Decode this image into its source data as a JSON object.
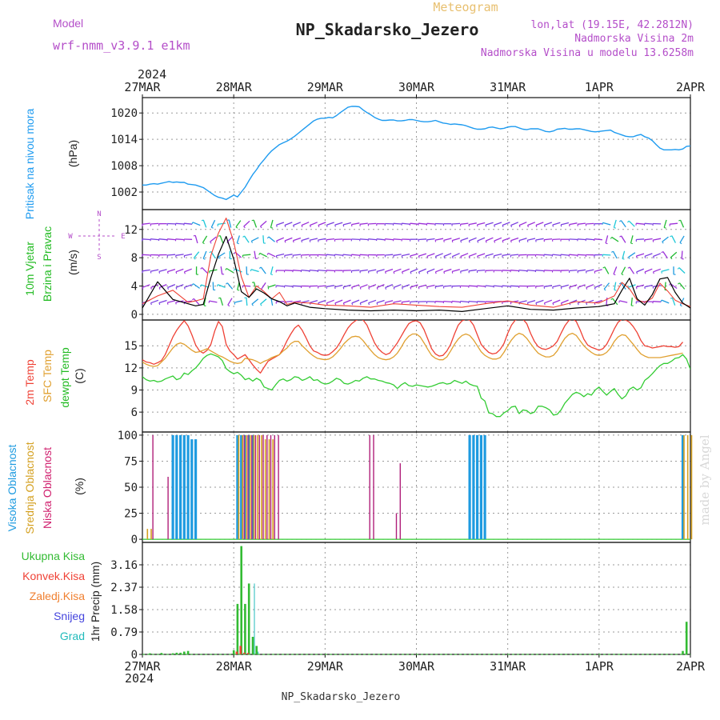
{
  "header": {
    "title": "NP_Skadarsko_Jezero",
    "subtitle": "Meteogram",
    "model_label": "Model",
    "model_value": "wrf-nmm_v3.9.1  e1km",
    "lonlat": "lon,lat (19.15E, 42.2812N)",
    "alt_line": "Nadmorska Visina 2m",
    "alt_model_line": "Nadmorska Visina u modelu 13.6258m",
    "footer_title": "NP_Skadarsko_Jezero",
    "watermark": "made by Angel"
  },
  "time_axis": {
    "year": "2024",
    "labels": [
      "27MAR",
      "28MAR",
      "29MAR",
      "30MAR",
      "31MAR",
      "1APR",
      "2APR"
    ]
  },
  "colors": {
    "pressure": "#1e9bf0",
    "temp2m": "#ef4135",
    "sfc_temp": "#e0a030",
    "dewpoint": "#33cc33",
    "wind_speed": "#000000",
    "gust": "#ef4135",
    "high_cloud": "#1e9be0",
    "mid_cloud": "#d4a020",
    "low_cloud": "#b0207a",
    "total_precip": "#33bb33",
    "conv_precip": "#ef4135",
    "frozen_precip": "#f08030",
    "snow": "#4444dd",
    "hail": "#22bbbb"
  },
  "chart_data": [
    {
      "panel": "pressure",
      "type": "line",
      "ylabel": [
        "Pritisak na nivou mora",
        "(hPa)"
      ],
      "yticks": [
        1002,
        1008,
        1014,
        1020
      ],
      "ylim": [
        998,
        1023.5
      ],
      "grid": true,
      "x": [
        0,
        1,
        2,
        3,
        4,
        5,
        6,
        7,
        8,
        9,
        10,
        11,
        12,
        13,
        14,
        15,
        16,
        17,
        18,
        19,
        20,
        21,
        22,
        23,
        24,
        25,
        26,
        27,
        28,
        29,
        30,
        31,
        32,
        33,
        34,
        35,
        36,
        37,
        38,
        39,
        40,
        41,
        42,
        43,
        44,
        45,
        46,
        47,
        48,
        49,
        50,
        51,
        52,
        53,
        54,
        55,
        56,
        57,
        58,
        59,
        60,
        61,
        62,
        63,
        64,
        65,
        66,
        67,
        68,
        69,
        70,
        71,
        72,
        73,
        74,
        75,
        76,
        77,
        78,
        79,
        80,
        81,
        82,
        83,
        84,
        85,
        86,
        87,
        88,
        89,
        90,
        91,
        92,
        93,
        94,
        95,
        96,
        97,
        98,
        99,
        100,
        101,
        102,
        103,
        104,
        105,
        106,
        107,
        108,
        109,
        110,
        111,
        112,
        113,
        114,
        115,
        116,
        117,
        118,
        119,
        120,
        121,
        122,
        123,
        124,
        125,
        126,
        127,
        128,
        129,
        130,
        131,
        132,
        133,
        134,
        135,
        136,
        137,
        138,
        139,
        140,
        141,
        142,
        143,
        144
      ],
      "y": [
        1003.6,
        1003.6,
        1003.8,
        1003.9,
        1003.8,
        1004,
        1004.2,
        1004.4,
        1004.2,
        1004.3,
        1004.2,
        1004.2,
        1003.8,
        1003.7,
        1003.6,
        1003.3,
        1003,
        1002.4,
        1001.8,
        1001.2,
        1000.8,
        1000.6,
        1000.3,
        1000.8,
        1001.3,
        1000.9,
        1002,
        1003.1,
        1004.6,
        1006,
        1007.1,
        1008.4,
        1009.4,
        1010.5,
        1011.4,
        1012.1,
        1012.8,
        1013.2,
        1013.6,
        1014.1,
        1014.7,
        1015.4,
        1016.1,
        1016.8,
        1017.5,
        1018.2,
        1018.6,
        1018.8,
        1018.8,
        1019,
        1018.9,
        1019.4,
        1020.1,
        1020.7,
        1021.3,
        1021.5,
        1021.5,
        1021.4,
        1020.7,
        1020.1,
        1019.6,
        1019,
        1018.6,
        1018.3,
        1018.3,
        1018.4,
        1018.4,
        1018.2,
        1018.2,
        1018.3,
        1018.5,
        1018.5,
        1018.3,
        1018.1,
        1018,
        1018,
        1018.1,
        1018.3,
        1018,
        1017.7,
        1017.6,
        1017.4,
        1017.5,
        1017.4,
        1017.3,
        1017.1,
        1016.8,
        1016.5,
        1016.3,
        1016.3,
        1016.4,
        1016.7,
        1016.8,
        1016.6,
        1016.4,
        1016.5,
        1016.8,
        1016.9,
        1016.9,
        1016.6,
        1016.3,
        1016.2,
        1016.4,
        1016.4,
        1016.4,
        1016.1,
        1015.8,
        1015.7,
        1015.9,
        1016.3,
        1016.4,
        1016.5,
        1016.3,
        1016.3,
        1016.4,
        1016.4,
        1016.2,
        1016,
        1015.8,
        1015.7,
        1015.8,
        1015.9,
        1016,
        1016.1,
        1015.6,
        1015.3,
        1015,
        1014.7,
        1014.6,
        1014.6,
        1014.9,
        1015.1,
        1014.6,
        1014.3,
        1013.7,
        1012.8,
        1012,
        1011.6,
        1011.6,
        1011.6,
        1011.7,
        1011.6,
        1011.8,
        1012.4,
        1012.5
      ]
    },
    {
      "panel": "wind",
      "type": "line",
      "ylabel": [
        "10m Vjetar",
        "Brzina i Pravac",
        "(m/s)"
      ],
      "compass": [
        "N",
        "W",
        "E",
        "S"
      ],
      "yticks": [
        0,
        4,
        8,
        12
      ],
      "ylim": [
        -0.8,
        14.8
      ],
      "grid": true,
      "x": [
        0,
        4,
        8,
        12,
        14,
        16,
        18,
        20,
        22,
        24,
        26,
        28,
        30,
        32,
        34,
        36,
        38,
        40,
        44,
        48,
        54,
        60,
        66,
        72,
        78,
        84,
        90,
        96,
        102,
        108,
        114,
        120,
        124,
        126,
        128,
        130,
        132,
        134,
        136,
        138,
        140,
        142,
        144
      ],
      "speed": [
        0.9,
        4.6,
        2.1,
        1.5,
        1.2,
        1.4,
        5.2,
        8.5,
        11,
        7.8,
        3.2,
        2.4,
        3.6,
        3,
        2.2,
        1.8,
        1.2,
        1.6,
        1,
        0.8,
        0.6,
        0.5,
        0.6,
        0.5,
        0.6,
        0.4,
        0.8,
        1.2,
        0.7,
        0.6,
        0.9,
        1.1,
        1.5,
        3.4,
        5.1,
        2.2,
        1.3,
        2.8,
        5,
        5.2,
        3.1,
        1.6,
        0.9
      ],
      "gust": [
        1.5,
        2.6,
        3.4,
        1.7,
        1.9,
        2.2,
        8.3,
        11.5,
        13.6,
        10.2,
        5.3,
        2.4,
        4,
        3.2,
        2.2,
        3.1,
        1.4,
        1.7,
        1.6,
        1.3,
        1.2,
        1,
        1.5,
        1.3,
        1.1,
        1,
        1.5,
        1.9,
        1.3,
        1,
        1.8,
        1.6,
        2.6,
        4.5,
        3.6,
        2,
        1.7,
        2.3,
        4.4,
        3.3,
        2,
        1.5,
        1.1
      ]
    },
    {
      "panel": "temperature",
      "type": "line",
      "ylabel": [
        "2m Temp",
        "SFC Temp",
        "dewpt Temp",
        "(C)"
      ],
      "yticks": [
        6,
        9,
        12,
        15
      ],
      "ylim": [
        3.3,
        18.5
      ],
      "grid": true,
      "x": [
        0,
        1,
        2,
        3,
        4,
        5,
        6,
        7,
        8,
        9,
        10,
        11,
        12,
        13,
        14,
        15,
        16,
        17,
        18,
        19,
        20,
        21,
        22,
        23,
        24,
        25,
        26,
        27,
        28,
        29,
        30,
        31,
        32,
        33,
        34,
        35,
        36,
        37,
        38,
        39,
        40,
        41,
        42,
        43,
        44,
        45,
        46,
        47,
        48,
        49,
        50,
        51,
        52,
        53,
        54,
        55,
        56,
        57,
        58,
        59,
        60,
        61,
        62,
        63,
        64,
        65,
        66,
        67,
        68,
        69,
        70,
        71,
        72,
        73,
        74,
        75,
        76,
        77,
        78,
        79,
        80,
        81,
        82,
        83,
        84,
        85,
        86,
        87,
        88,
        89,
        90,
        91,
        92,
        93,
        94,
        95,
        96,
        97,
        98,
        99,
        100,
        101,
        102,
        103,
        104,
        105,
        106,
        107,
        108,
        109,
        110,
        111,
        112,
        113,
        114,
        115,
        116,
        117,
        118,
        119,
        120,
        121,
        122,
        123,
        124,
        125,
        126,
        127,
        128,
        129,
        130,
        131,
        132,
        133,
        134,
        135,
        136,
        137,
        138,
        139,
        140,
        141,
        142,
        143,
        144
      ],
      "t2m": [
        13.1,
        12.8,
        12.7,
        12.5,
        12.7,
        13,
        13.8,
        15,
        16.2,
        17.1,
        17.8,
        18.4,
        17.7,
        16.5,
        15.1,
        14.3,
        14,
        14.4,
        15.2,
        17,
        18.3,
        17.6,
        15.2,
        14.3,
        13.8,
        13.2,
        13.5,
        13.8,
        13.1,
        12.4,
        11.8,
        11.3,
        12.1,
        12.9,
        13.2,
        13.5,
        13.8,
        14.6,
        15.7,
        16.6,
        17.4,
        17.8,
        17.1,
        16.1,
        15,
        14.3,
        14.1,
        13.8,
        13.7,
        13.8,
        14.2,
        14.7,
        15.5,
        16.5,
        17.4,
        18,
        18.4,
        18.7,
        18.5,
        17.8,
        16.6,
        15.4,
        14.6,
        14.1,
        13.8,
        14,
        14.7,
        15.4,
        16.3,
        17.2,
        18,
        18.3,
        18.4,
        18.1,
        17.2,
        15.9,
        14.6,
        13.9,
        13.6,
        13.7,
        14.3,
        15.2,
        16.6,
        17.8,
        18.4,
        18.6,
        18.5,
        17.8,
        16.5,
        15.2,
        14.6,
        14.1,
        13.9,
        14,
        14.5,
        15.3,
        16.7,
        17.8,
        18.5,
        18.7,
        18.6,
        18,
        16.7,
        15.6,
        14.9,
        14.6,
        14.5,
        14.7,
        15,
        15.6,
        16.7,
        17.7,
        18.4,
        18.7,
        18.3,
        17.2,
        15.9,
        15.1,
        14.8,
        14.6,
        14.4,
        14.6,
        15.2,
        16.2,
        17.3,
        18.2,
        18.6,
        18.5,
        18.2,
        17.6,
        16.8,
        15.7,
        15,
        14.9,
        14.7,
        14.8,
        14.9,
        15,
        14.9,
        14.9,
        14.8,
        14.9,
        15.5
      ],
      "tsfc": [
        12.8,
        12.5,
        12.3,
        12.2,
        12.3,
        12.8,
        13.3,
        14,
        14.7,
        15.2,
        15.4,
        15.2,
        14.8,
        14.4,
        14.1,
        14.2,
        14.4,
        14.6,
        14.3,
        14,
        13.7,
        13.5,
        13.2,
        12.9,
        12.7,
        12.6,
        12.7,
        13.3,
        13.2,
        13.1,
        12.9,
        12.6,
        12.9,
        13.1,
        13.4,
        13.6,
        13.8,
        14.3,
        14.7,
        15.3,
        15.6,
        15.6,
        15,
        14.5,
        14,
        13.6,
        13.3,
        13.2,
        13.1,
        13.2,
        13.5,
        14,
        14.6,
        15.3,
        15.8,
        16.2,
        16.3,
        16.2,
        15.7,
        15,
        14.4,
        13.8,
        13.4,
        13.2,
        13.1,
        13.2,
        13.5,
        14,
        14.8,
        15.7,
        16.3,
        16.6,
        16.6,
        16.2,
        15.4,
        14.5,
        13.7,
        13.3,
        13.1,
        13.1,
        13.5,
        14.3,
        15.2,
        15.9,
        16.4,
        16.6,
        16.4,
        15.8,
        15,
        14.2,
        13.7,
        13.4,
        13.2,
        13.2,
        13.4,
        14.1,
        15,
        15.8,
        16.4,
        16.7,
        16.5,
        16,
        15.3,
        14.6,
        14,
        13.7,
        13.5,
        13.5,
        13.7,
        14.3,
        15.2,
        16,
        16.5,
        16.7,
        16.4,
        15.7,
        15,
        14.5,
        14.1,
        13.8,
        13.7,
        13.8,
        14.1,
        14.7,
        15.6,
        16.2,
        16.5,
        16.4,
        15.8,
        15.2,
        14.5,
        13.9,
        13.6,
        13.4,
        13.4,
        13.4,
        13.4,
        13.5,
        13.6,
        13.7,
        13.8,
        13.9,
        14
      ],
      "dewpt": [
        10.8,
        10.4,
        10.2,
        10.3,
        10.1,
        10.2,
        10.5,
        10.7,
        10.9,
        10.4,
        10.6,
        11.3,
        11.1,
        11.6,
        12,
        12.6,
        13.3,
        13.7,
        13.9,
        13.7,
        13.5,
        13,
        11.9,
        11.5,
        11.2,
        11.4,
        11,
        10.4,
        10.6,
        10.2,
        10.6,
        10.3,
        9.4,
        9.2,
        9,
        9.7,
        10.3,
        10.5,
        10.2,
        10.4,
        10.8,
        10.7,
        10.3,
        10.5,
        10.8,
        10.3,
        10.4,
        10,
        9.8,
        9.9,
        10.2,
        10.6,
        10.4,
        9.9,
        9.8,
        10,
        10.3,
        10.2,
        10.6,
        10.8,
        10.5,
        10.5,
        10.3,
        10.2,
        10,
        9.9,
        9.7,
        9.2,
        9.7,
        10,
        9.6,
        9.5,
        9.7,
        9.6,
        9.5,
        9.4,
        9.5,
        9.7,
        9.9,
        10,
        9.8,
        9.9,
        10.3,
        10.1,
        9.9,
        10.2,
        9.8,
        9.6,
        9.5,
        7.9,
        7.5,
        5.9,
        5.8,
        5.4,
        5.4,
        5.9,
        6.2,
        6.7,
        6.8,
        5.8,
        6.3,
        6.2,
        5.8,
        6,
        6.8,
        6.8,
        6.6,
        6.3,
        5.6,
        5.7,
        6.3,
        7.2,
        7.8,
        8.4,
        8.7,
        8.5,
        8.1,
        8.5,
        8.3,
        9,
        9.4,
        8.8,
        8.3,
        8.8,
        9.2,
        8.4,
        7.8,
        8.2,
        9.1,
        9.4,
        9,
        9.3,
        10.3,
        10.7,
        11.2,
        11.8,
        12.3,
        12.6,
        12.6,
        12.9,
        13.3,
        13.4,
        13.8,
        13.2,
        11.8
      ]
    },
    {
      "panel": "cloud",
      "type": "bar",
      "ylabel": [
        "Visoka Oblacnost",
        "Srednja Oblacnost",
        "Niska Oblacnost",
        "(%)"
      ],
      "yticks": [
        0,
        25,
        50,
        75,
        100
      ],
      "ylim": [
        -3,
        103
      ],
      "grid": true,
      "high": [
        [
          8,
          100
        ],
        [
          9,
          100
        ],
        [
          10,
          100
        ],
        [
          11,
          100
        ],
        [
          12,
          100
        ],
        [
          13,
          96
        ],
        [
          14,
          96
        ],
        [
          25,
          100
        ],
        [
          26,
          100
        ],
        [
          27,
          100
        ],
        [
          28,
          100
        ],
        [
          29,
          100
        ],
        [
          86,
          100
        ],
        [
          87,
          100
        ],
        [
          88,
          100
        ],
        [
          89,
          100
        ],
        [
          90,
          100
        ],
        [
          142,
          100
        ]
      ],
      "mid": [
        [
          1,
          10
        ],
        [
          2,
          10
        ],
        [
          25,
          100
        ],
        [
          26,
          100
        ],
        [
          27,
          100
        ],
        [
          28,
          100
        ],
        [
          29,
          100
        ],
        [
          30,
          100
        ],
        [
          31,
          100
        ],
        [
          32,
          96
        ],
        [
          33,
          96
        ],
        [
          34,
          96
        ],
        [
          142,
          100
        ],
        [
          143,
          100
        ],
        [
          144,
          100
        ]
      ],
      "low": [
        [
          3,
          100
        ],
        [
          7,
          60
        ],
        [
          27,
          100
        ],
        [
          28,
          100
        ],
        [
          29,
          100
        ],
        [
          30,
          100
        ],
        [
          31,
          100
        ],
        [
          32,
          100
        ],
        [
          33,
          100
        ],
        [
          34,
          100
        ],
        [
          35,
          100
        ],
        [
          36,
          100
        ],
        [
          60,
          100
        ],
        [
          61,
          100
        ],
        [
          67,
          25
        ],
        [
          68,
          73
        ]
      ]
    },
    {
      "panel": "precip",
      "type": "bar",
      "ylabel": [
        "1hr Precip (mm)"
      ],
      "legend": [
        "Ukupna Kisa",
        "Konvek.Kisa",
        "Zaledj.Kisa",
        "Snijeg",
        "Grad"
      ],
      "yticks": [
        0,
        0.79,
        1.58,
        2.37,
        3.16
      ],
      "ylim": [
        0,
        3.95
      ],
      "grid": true,
      "total": [
        [
          2,
          0.04
        ],
        [
          5,
          0.05
        ],
        [
          8,
          0.04
        ],
        [
          9,
          0.06
        ],
        [
          10,
          0.06
        ],
        [
          11,
          0.1
        ],
        [
          12,
          0.12
        ],
        [
          24,
          0.15
        ],
        [
          25,
          1.78
        ],
        [
          26,
          3.82
        ],
        [
          27,
          1.78
        ],
        [
          28,
          2.5
        ],
        [
          29,
          0.62
        ],
        [
          30,
          0.3
        ],
        [
          142,
          0.12
        ],
        [
          143,
          1.15
        ]
      ],
      "conv": [
        [
          25,
          0.1
        ],
        [
          26,
          0.3
        ],
        [
          27,
          0.06
        ],
        [
          28,
          0.05
        ]
      ],
      "hail": [
        [
          29,
          2.5
        ],
        [
          30,
          0.1
        ]
      ]
    }
  ]
}
